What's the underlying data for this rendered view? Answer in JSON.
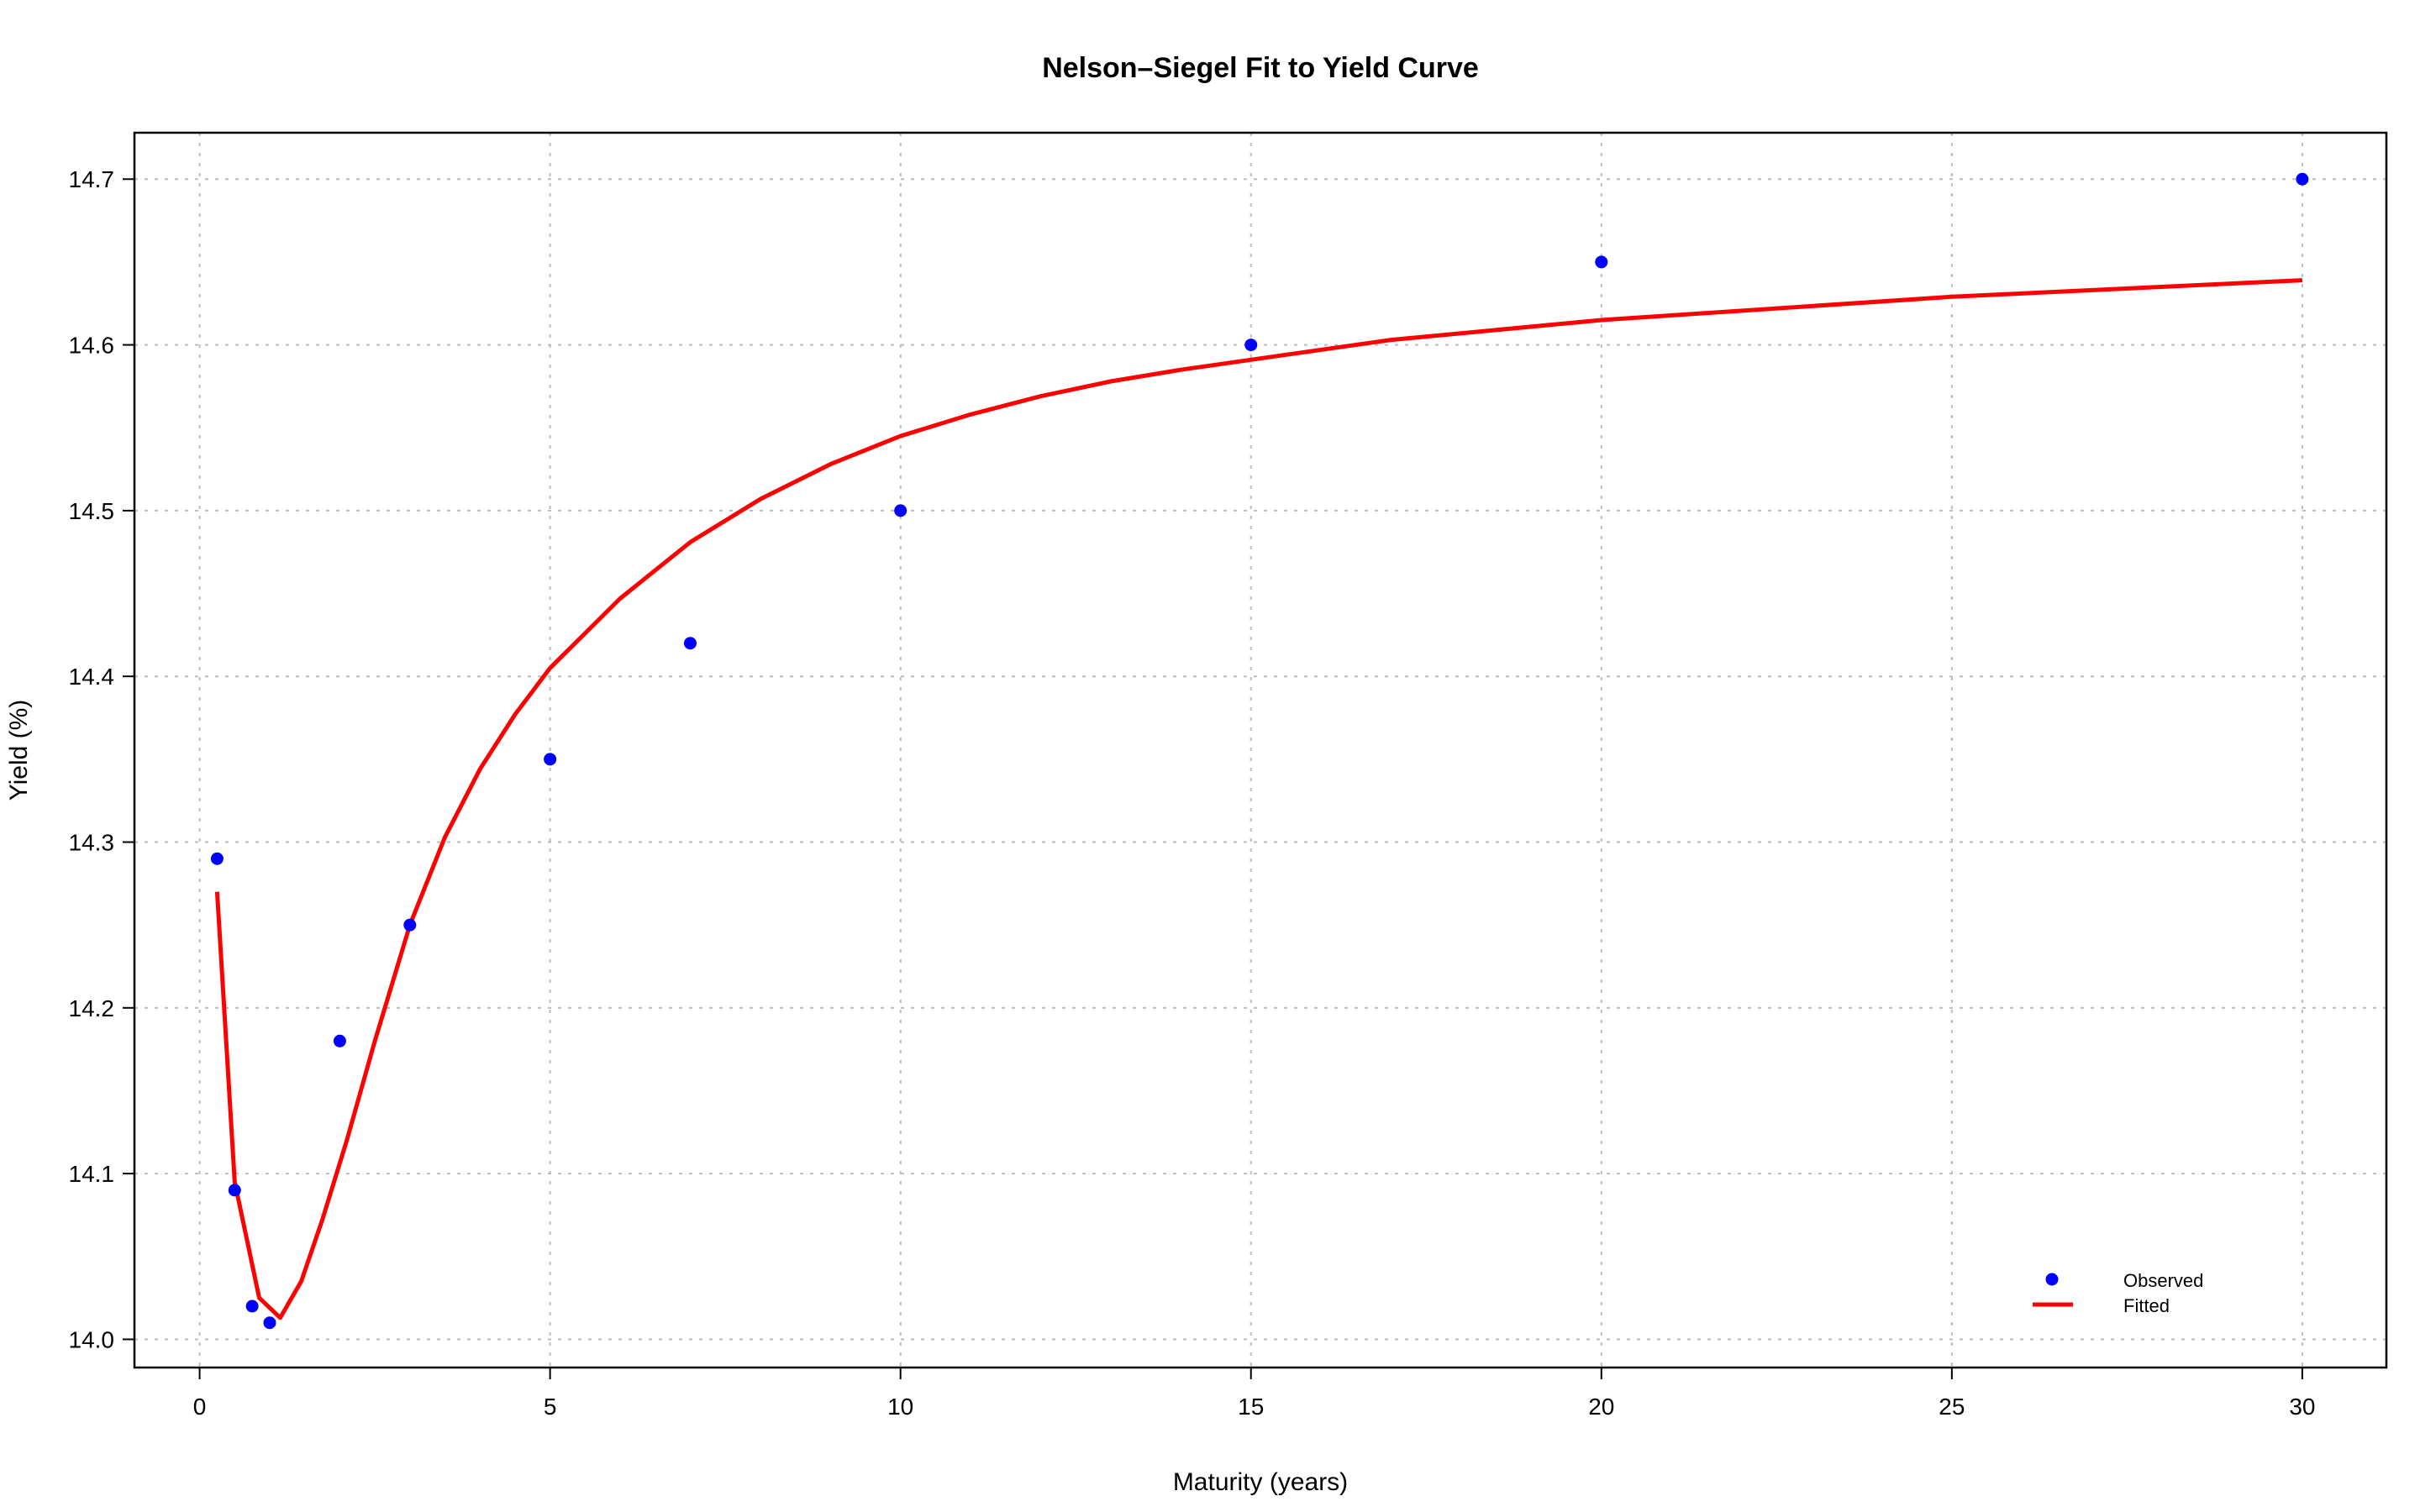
{
  "chart_data": {
    "type": "scatter",
    "title": "Nelson–Siegel Fit to Yield Curve",
    "xlabel": "Maturity (years)",
    "ylabel": "Yield (%)",
    "xlim": [
      -0.93,
      31.2
    ],
    "ylim": [
      13.983,
      14.728
    ],
    "xticks": [
      0,
      5,
      10,
      15,
      20,
      25,
      30
    ],
    "yticks": [
      14.0,
      14.1,
      14.2,
      14.3,
      14.4,
      14.5,
      14.6,
      14.7
    ],
    "ytick_labels": [
      "14.0",
      "14.1",
      "14.2",
      "14.3",
      "14.4",
      "14.5",
      "14.6",
      "14.7"
    ],
    "grid": true,
    "legend_position": "bottom-right",
    "series": [
      {
        "name": "Observed",
        "kind": "points",
        "color": "#0000ff",
        "x": [
          0.25,
          0.5,
          0.75,
          1,
          2,
          3,
          5,
          7,
          10,
          15,
          20,
          30
        ],
        "y": [
          14.29,
          14.09,
          14.02,
          14.01,
          14.18,
          14.25,
          14.35,
          14.42,
          14.5,
          14.6,
          14.65,
          14.7
        ]
      },
      {
        "name": "Fitted",
        "kind": "line",
        "color": "#ff0000",
        "x": [
          0.25,
          0.5,
          0.85,
          1.15,
          1.45,
          1.75,
          2.1,
          2.5,
          3.0,
          3.5,
          4.0,
          4.5,
          5.0,
          6.0,
          7.0,
          8.0,
          9.0,
          10.0,
          11.0,
          12.0,
          13.0,
          14.0,
          15.0,
          17.0,
          20.0,
          25.0,
          30.0
        ],
        "y": [
          14.27,
          14.095,
          14.025,
          14.013,
          14.035,
          14.072,
          14.12,
          14.18,
          14.25,
          14.303,
          14.344,
          14.377,
          14.405,
          14.447,
          14.481,
          14.507,
          14.528,
          14.545,
          14.558,
          14.569,
          14.578,
          14.585,
          14.591,
          14.603,
          14.615,
          14.629,
          14.639
        ]
      }
    ]
  }
}
